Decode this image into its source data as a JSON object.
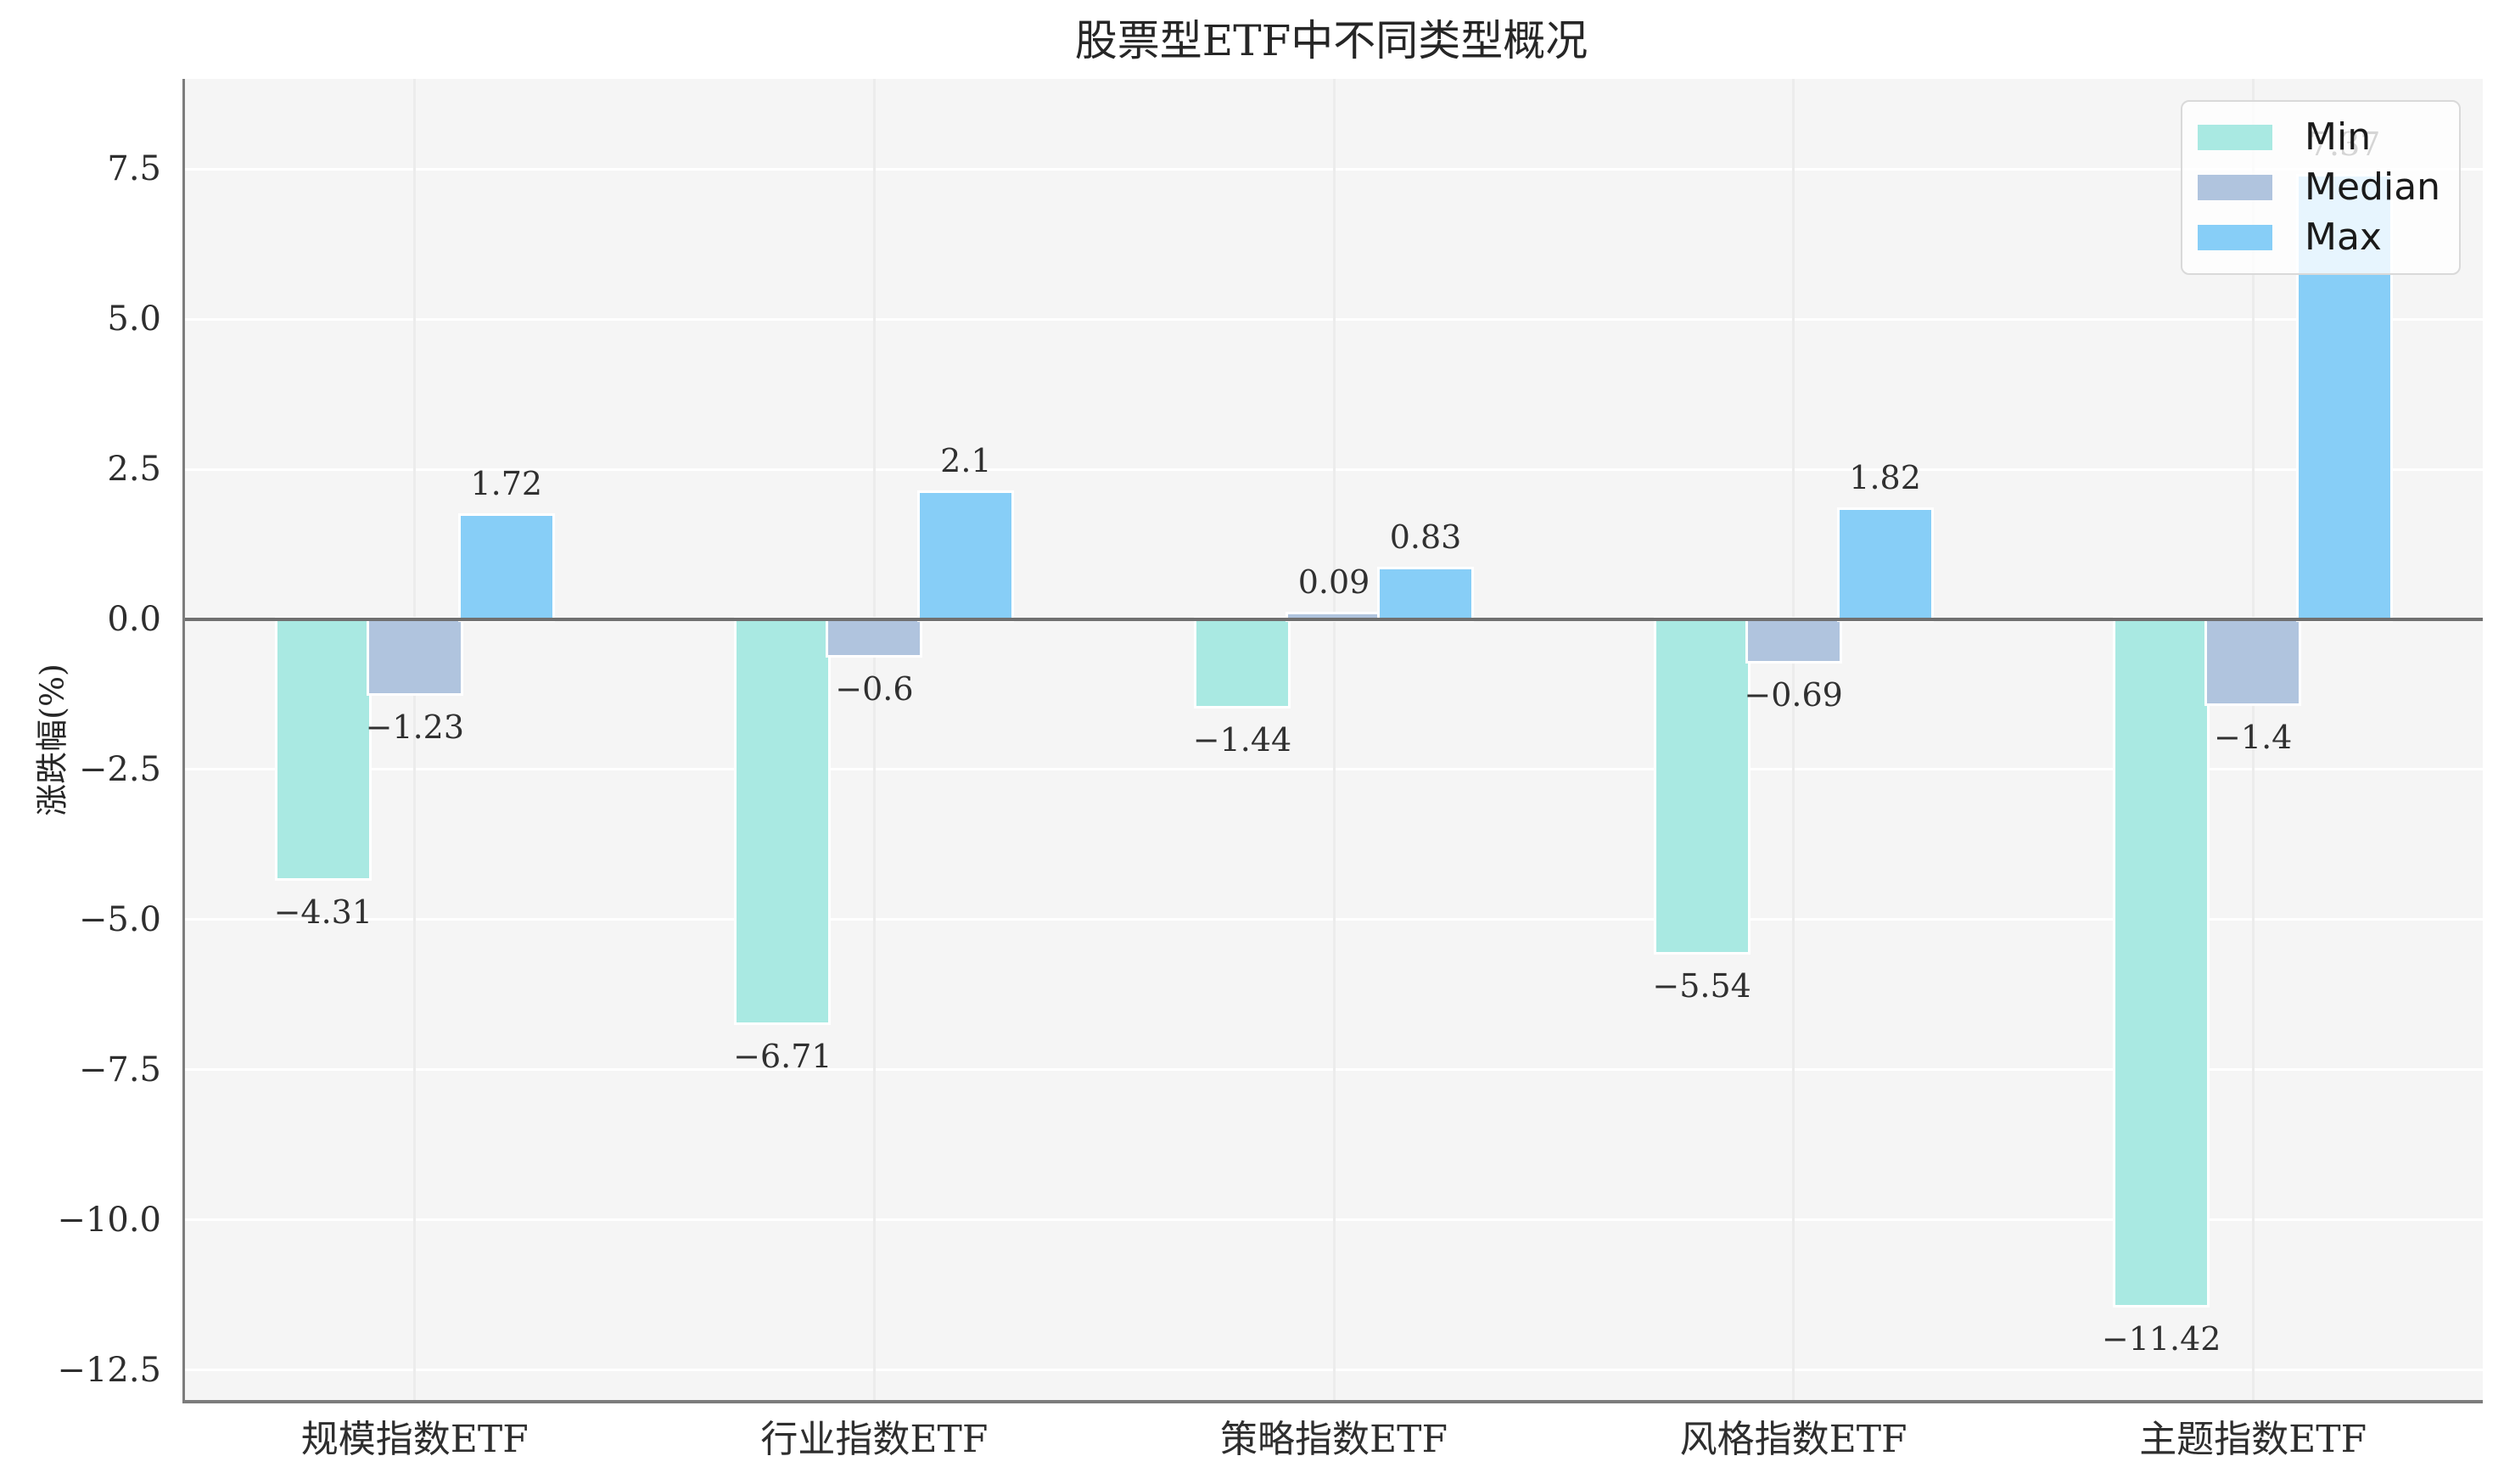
{
  "title": "股票型ETF中不同类型概况",
  "chart_data": {
    "type": "bar",
    "title": "股票型ETF中不同类型概况",
    "xlabel": "",
    "ylabel": "涨跌幅(%)",
    "categories": [
      "规模指数ETF",
      "行业指数ETF",
      "策略指数ETF",
      "风格指数ETF",
      "主题指数ETF"
    ],
    "series": [
      {
        "name": "Min",
        "color": "#a9e9e2",
        "values": [
          -4.31,
          -6.71,
          -1.44,
          -5.54,
          -11.42
        ],
        "labels": [
          "−4.31",
          "−6.71",
          "−1.44",
          "−5.54",
          "−11.42"
        ]
      },
      {
        "name": "Median",
        "color": "#b0c4de",
        "values": [
          -1.23,
          -0.6,
          0.09,
          -0.69,
          -1.4
        ],
        "labels": [
          "−1.23",
          "−0.6",
          "0.09",
          "−0.69",
          "−1.4"
        ]
      },
      {
        "name": "Max",
        "color": "#87cef7",
        "values": [
          1.72,
          2.1,
          0.83,
          1.82,
          7.37
        ],
        "labels": [
          "1.72",
          "2.1",
          "0.83",
          "1.82",
          "7.37"
        ]
      }
    ],
    "yticks": [
      {
        "value": 7.5,
        "label": "7.5"
      },
      {
        "value": 5.0,
        "label": "5.0"
      },
      {
        "value": 2.5,
        "label": "2.5"
      },
      {
        "value": 0.0,
        "label": "0.0"
      },
      {
        "value": -2.5,
        "label": "−2.5"
      },
      {
        "value": -5.0,
        "label": "−5.0"
      },
      {
        "value": -7.5,
        "label": "−7.5"
      },
      {
        "value": -10.0,
        "label": "−10.0"
      },
      {
        "value": -12.5,
        "label": "−12.5"
      }
    ],
    "ylim": [
      -13.0,
      9.0
    ],
    "grid": true,
    "legend_position": "upper right",
    "plot_background": "#f5f5f5",
    "zero_line_color": "#707070"
  }
}
